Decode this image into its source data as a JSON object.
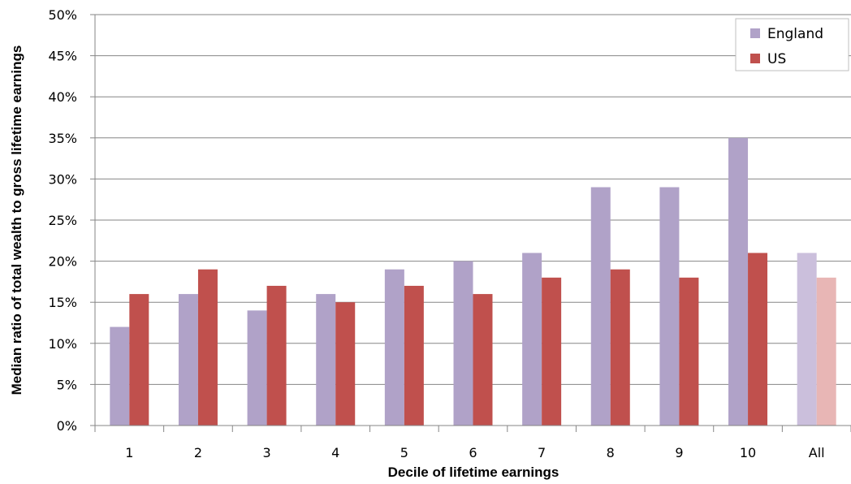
{
  "chart_data": {
    "type": "bar",
    "title": "",
    "xlabel": "Decile of lifetime earnings",
    "ylabel": "Median ratio of total wealth to gross lifetime earnings",
    "categories": [
      "1",
      "2",
      "3",
      "4",
      "5",
      "6",
      "7",
      "8",
      "9",
      "10",
      "All"
    ],
    "ylim": [
      0,
      50
    ],
    "yticks": [
      "0%",
      "5%",
      "10%",
      "15%",
      "20%",
      "25%",
      "30%",
      "35%",
      "40%",
      "45%",
      "50%"
    ],
    "grid": true,
    "legend_position": "top-right",
    "series": [
      {
        "name": "England",
        "color": "#b0a2c8",
        "highlight_color": "#cbbfdc",
        "values": [
          12,
          16,
          14,
          16,
          19,
          20,
          21,
          29,
          29,
          35,
          21
        ]
      },
      {
        "name": "US",
        "color": "#c0504d",
        "highlight_color": "#e8b6b5",
        "values": [
          16,
          19,
          17,
          15,
          17,
          16,
          18,
          19,
          18,
          21,
          18
        ]
      }
    ]
  }
}
